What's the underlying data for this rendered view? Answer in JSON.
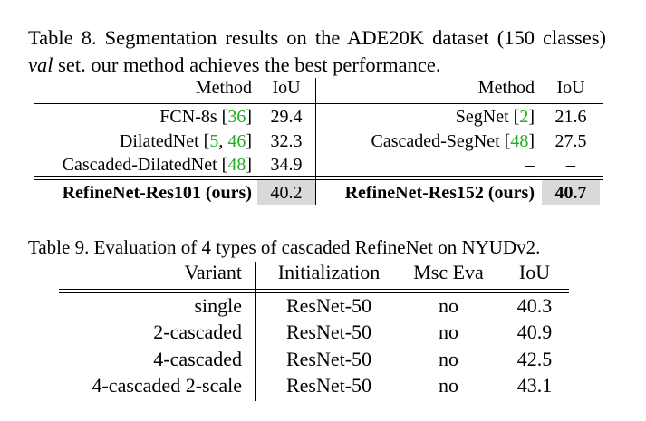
{
  "table8": {
    "caption": {
      "label": "Table 8.",
      "text1": " Segmentation results on the ADE20K dataset (150 classes) ",
      "val": "val",
      "text2": " set. our method achieves the best performance."
    },
    "left": {
      "header": {
        "method": "Method",
        "iou": "IoU"
      },
      "rows": [
        {
          "method": "FCN-8s",
          "refs": [
            {
              "t": "36",
              "c": true
            }
          ],
          "iou": "29.4"
        },
        {
          "method": "DilatedNet",
          "refs": [
            {
              "t": "5",
              "c": true
            },
            {
              "t": ", ",
              "c": false
            },
            {
              "t": "46",
              "c": true
            }
          ],
          "iou": "32.3"
        },
        {
          "method": "Cascaded-DilatedNet",
          "refs": [
            {
              "t": "48",
              "c": true
            }
          ],
          "iou": "34.9"
        }
      ],
      "ours": {
        "method": "RefineNet-Res101 (ours)",
        "iou": "40.2"
      }
    },
    "right": {
      "header": {
        "method": "Method",
        "iou": "IoU"
      },
      "rows": [
        {
          "method": "SegNet",
          "refs": [
            {
              "t": "2",
              "c": true
            }
          ],
          "iou": "21.6"
        },
        {
          "method": "Cascaded-SegNet",
          "refs": [
            {
              "t": "48",
              "c": true
            }
          ],
          "iou": "27.5"
        },
        {
          "method": "–",
          "refs": [],
          "iou": "–"
        }
      ],
      "ours": {
        "method": "RefineNet-Res152 (ours)",
        "iou": "40.7"
      }
    }
  },
  "table9": {
    "caption": "Table 9. Evaluation of 4 types of cascaded RefineNet on NYUDv2.",
    "header": {
      "variant": "Variant",
      "init": "Initialization",
      "msc": "Msc Eva",
      "iou": "IoU"
    },
    "rows": [
      {
        "variant": "single",
        "init": "ResNet-50",
        "msc": "no",
        "iou": "40.3"
      },
      {
        "variant": "2-cascaded",
        "init": "ResNet-50",
        "msc": "no",
        "iou": "40.9"
      },
      {
        "variant": "4-cascaded",
        "init": "ResNet-50",
        "msc": "no",
        "iou": "42.5"
      },
      {
        "variant": "4-cascaded 2-scale",
        "init": "ResNet-50",
        "msc": "no",
        "iou": "43.1"
      }
    ]
  }
}
